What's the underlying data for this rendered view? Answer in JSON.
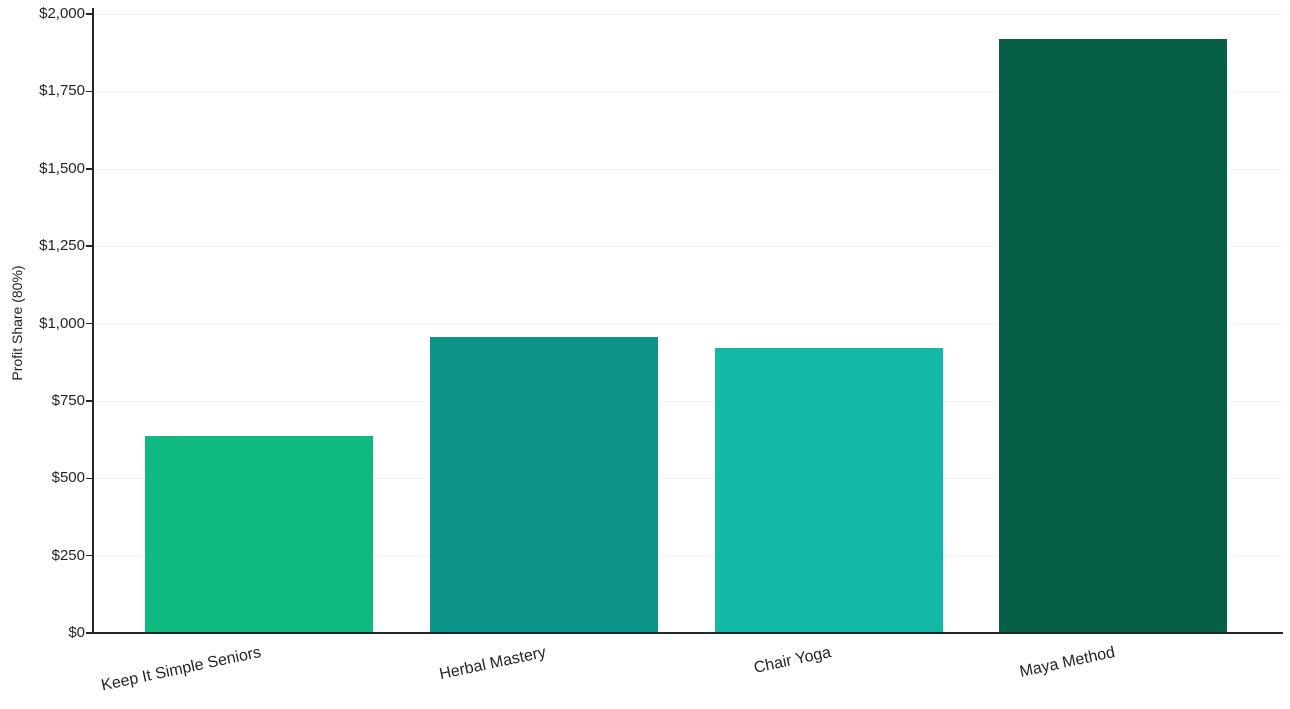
{
  "chart_data": {
    "type": "bar",
    "title": "",
    "xlabel": "",
    "ylabel": "Profit Share (80%)",
    "categories": [
      "Keep It Simple Seniors",
      "Herbal Mastery",
      "Chair Yoga",
      "Maya Method"
    ],
    "values": [
      635,
      955,
      920,
      1920
    ],
    "bar_colors": [
      "#10b981",
      "#0d9488",
      "#14b8a6",
      "#065f46"
    ],
    "ylim": [
      0,
      2000
    ],
    "ytick_step": 250,
    "ytick_labels": [
      "$0",
      "$250",
      "$500",
      "$750",
      "$1,000",
      "$1,250",
      "$1,500",
      "$1,750",
      "$2,000"
    ],
    "grid": "horizontal",
    "legend_position": "none",
    "x_label_rotation_deg": -12
  },
  "colors": {
    "background": "#ffffff",
    "axis_line": "#262626",
    "grid_line": "#f2f2f5",
    "tick_text": "#1f2329"
  }
}
